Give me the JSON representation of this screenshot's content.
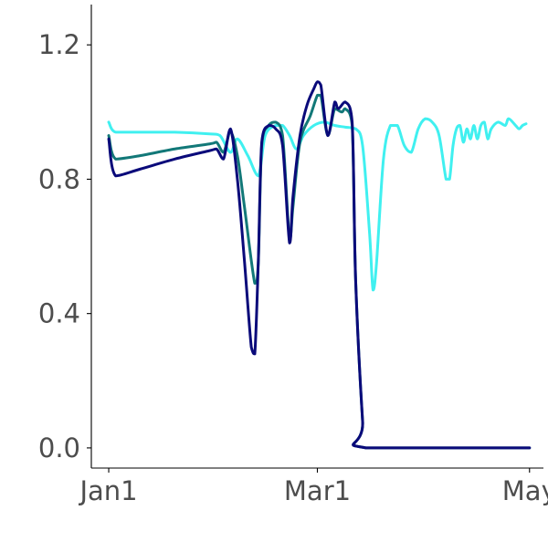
{
  "chart_data": {
    "type": "line",
    "title": "",
    "xlabel": "",
    "ylabel": "",
    "x_ticks": [
      "Jan1",
      "Mar1",
      "May"
    ],
    "x_tick_dates": [
      "2020-01-01",
      "2020-03-01",
      "2020-05-01"
    ],
    "xlim": [
      "2019-12-27",
      "2020-05-05"
    ],
    "y_ticks": [
      "0.0",
      "0.4",
      "0.8",
      "1.2"
    ],
    "y_tick_values": [
      0.0,
      0.4,
      0.8,
      1.2
    ],
    "ylim": [
      -0.06,
      1.32
    ],
    "grid": false,
    "legend": "none",
    "series": [
      {
        "color": "#40F0F0",
        "points": [
          [
            "2020-01-01",
            0.97
          ],
          [
            "2020-01-03",
            0.94
          ],
          [
            "2020-01-10",
            0.94
          ],
          [
            "2020-01-20",
            0.94
          ],
          [
            "2020-01-30",
            0.935
          ],
          [
            "2020-02-02",
            0.93
          ],
          [
            "2020-02-05",
            0.88
          ],
          [
            "2020-02-07",
            0.92
          ],
          [
            "2020-02-10",
            0.87
          ],
          [
            "2020-02-13",
            0.81
          ],
          [
            "2020-02-15",
            0.93
          ],
          [
            "2020-02-18",
            0.96
          ],
          [
            "2020-02-20",
            0.96
          ],
          [
            "2020-02-22",
            0.93
          ],
          [
            "2020-02-24",
            0.89
          ],
          [
            "2020-02-26",
            0.93
          ],
          [
            "2020-02-29",
            0.96
          ],
          [
            "2020-03-03",
            0.97
          ],
          [
            "2020-03-06",
            0.96
          ],
          [
            "2020-03-09",
            0.955
          ],
          [
            "2020-03-12",
            0.95
          ],
          [
            "2020-03-14",
            0.9
          ],
          [
            "2020-03-16",
            0.64
          ],
          [
            "2020-03-17",
            0.47
          ],
          [
            "2020-03-18",
            0.55
          ],
          [
            "2020-03-20",
            0.86
          ],
          [
            "2020-03-22",
            0.96
          ],
          [
            "2020-03-24",
            0.96
          ],
          [
            "2020-03-26",
            0.9
          ],
          [
            "2020-03-28",
            0.88
          ],
          [
            "2020-03-30",
            0.95
          ],
          [
            "2020-04-01",
            0.98
          ],
          [
            "2020-04-03",
            0.97
          ],
          [
            "2020-04-05",
            0.93
          ],
          [
            "2020-04-07",
            0.8
          ],
          [
            "2020-04-08",
            0.8
          ],
          [
            "2020-04-09",
            0.9
          ],
          [
            "2020-04-10",
            0.95
          ],
          [
            "2020-04-11",
            0.96
          ],
          [
            "2020-04-12",
            0.91
          ],
          [
            "2020-04-13",
            0.95
          ],
          [
            "2020-04-14",
            0.92
          ],
          [
            "2020-04-15",
            0.96
          ],
          [
            "2020-04-16",
            0.92
          ],
          [
            "2020-04-17",
            0.96
          ],
          [
            "2020-04-18",
            0.97
          ],
          [
            "2020-04-19",
            0.92
          ],
          [
            "2020-04-20",
            0.95
          ],
          [
            "2020-04-22",
            0.97
          ],
          [
            "2020-04-24",
            0.96
          ],
          [
            "2020-04-25",
            0.98
          ],
          [
            "2020-04-27",
            0.96
          ],
          [
            "2020-04-28",
            0.95
          ],
          [
            "2020-04-29",
            0.96
          ],
          [
            "2020-04-30",
            0.965
          ]
        ]
      },
      {
        "color": "#127878",
        "points": [
          [
            "2020-01-01",
            0.93
          ],
          [
            "2020-01-03",
            0.86
          ],
          [
            "2020-01-10",
            0.87
          ],
          [
            "2020-01-20",
            0.89
          ],
          [
            "2020-01-30",
            0.905
          ],
          [
            "2020-02-01",
            0.91
          ],
          [
            "2020-02-03",
            0.88
          ],
          [
            "2020-02-05",
            0.94
          ],
          [
            "2020-02-07",
            0.87
          ],
          [
            "2020-02-09",
            0.72
          ],
          [
            "2020-02-12",
            0.49
          ],
          [
            "2020-02-13",
            0.55
          ],
          [
            "2020-02-14",
            0.9
          ],
          [
            "2020-02-16",
            0.96
          ],
          [
            "2020-02-18",
            0.97
          ],
          [
            "2020-02-20",
            0.93
          ],
          [
            "2020-02-22",
            0.62
          ],
          [
            "2020-02-23",
            0.72
          ],
          [
            "2020-02-25",
            0.91
          ],
          [
            "2020-02-28",
            0.99
          ],
          [
            "2020-03-01",
            1.05
          ],
          [
            "2020-03-02",
            1.05
          ],
          [
            "2020-03-04",
            0.93
          ],
          [
            "2020-03-06",
            1.01
          ],
          [
            "2020-03-08",
            1.0
          ],
          [
            "2020-03-09",
            1.01
          ],
          [
            "2020-03-11",
            0.96
          ],
          [
            "2020-03-12",
            0.5
          ],
          [
            "2020-03-14",
            0.08
          ],
          [
            "2020-03-15",
            0.0
          ],
          [
            "2020-05-01",
            0.0
          ]
        ]
      },
      {
        "color": "#0A0A7A",
        "points": [
          [
            "2020-01-01",
            0.92
          ],
          [
            "2020-01-03",
            0.81
          ],
          [
            "2020-01-10",
            0.83
          ],
          [
            "2020-01-20",
            0.86
          ],
          [
            "2020-01-30",
            0.885
          ],
          [
            "2020-02-01",
            0.89
          ],
          [
            "2020-02-03",
            0.86
          ],
          [
            "2020-02-05",
            0.95
          ],
          [
            "2020-02-07",
            0.8
          ],
          [
            "2020-02-09",
            0.56
          ],
          [
            "2020-02-11",
            0.3
          ],
          [
            "2020-02-12",
            0.28
          ],
          [
            "2020-02-13",
            0.55
          ],
          [
            "2020-02-14",
            0.91
          ],
          [
            "2020-02-16",
            0.96
          ],
          [
            "2020-02-18",
            0.95
          ],
          [
            "2020-02-20",
            0.9
          ],
          [
            "2020-02-22",
            0.61
          ],
          [
            "2020-02-23",
            0.75
          ],
          [
            "2020-02-25",
            0.93
          ],
          [
            "2020-02-27",
            1.02
          ],
          [
            "2020-02-29",
            1.07
          ],
          [
            "2020-03-01",
            1.09
          ],
          [
            "2020-03-02",
            1.08
          ],
          [
            "2020-03-04",
            0.93
          ],
          [
            "2020-03-06",
            1.03
          ],
          [
            "2020-03-07",
            1.01
          ],
          [
            "2020-03-09",
            1.03
          ],
          [
            "2020-03-11",
            0.97
          ],
          [
            "2020-03-12",
            0.5
          ],
          [
            "2020-03-14",
            0.08
          ],
          [
            "2020-03-15",
            0.0
          ],
          [
            "2020-05-01",
            0.0
          ]
        ]
      }
    ]
  }
}
